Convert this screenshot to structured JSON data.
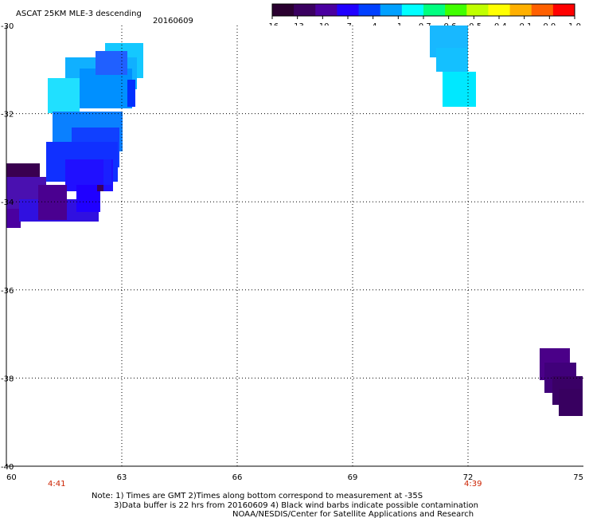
{
  "header": {
    "title": "ASCAT 25KM MLE-3 descending",
    "date": "20160609"
  },
  "colorbar": {
    "tick_labels": [
      "-16",
      "-13",
      "-10",
      "-7",
      "-4",
      "-1",
      "-0.7",
      "-0.6",
      "-0.5",
      "-0.4",
      "-0.1",
      "0.0",
      "1.0"
    ],
    "colors": [
      "#2a0030",
      "#3a0060",
      "#4a00a0",
      "#2000ff",
      "#0040ff",
      "#00a0ff",
      "#00ffff",
      "#00ff80",
      "#40ff00",
      "#c0ff00",
      "#ffff00",
      "#ffb000",
      "#ff6000",
      "#ff0000"
    ]
  },
  "map": {
    "lat_labels": [
      "-30",
      "-32",
      "-34",
      "-36",
      "-38",
      "-40"
    ],
    "lon_labels": [
      "60",
      "63",
      "66",
      "69",
      "72",
      "75"
    ],
    "time_labels": [
      "4:41",
      "4:39"
    ],
    "patches": [
      {
        "name": "west-swath",
        "lon": 60.5,
        "lat": -33.5,
        "value_range": [
          -16,
          -1
        ]
      },
      {
        "name": "northeast-swath",
        "lon": 72.0,
        "lat": -31.0,
        "value": -1
      },
      {
        "name": "southeast-swath",
        "lon": 74.5,
        "lat": -38.5,
        "value": -13
      }
    ]
  },
  "notes": {
    "line1": "Note: 1) Times are GMT 2)Times along bottom correspond to measurement at -35S",
    "line2": "3)Data buffer is 22 hrs from 20160609 4) Black wind barbs indicate possible contamination",
    "line3": "NOAA/NESDIS/Center for Satellite Applications and Research"
  }
}
